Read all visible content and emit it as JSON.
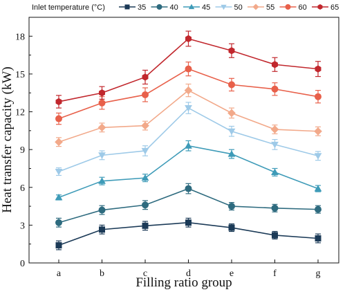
{
  "chart_data": {
    "type": "line",
    "xlabel": "Filling ratio group",
    "ylabel": "Heat transfer capacity (kW)",
    "categories": [
      "a",
      "b",
      "c",
      "d",
      "e",
      "f",
      "g"
    ],
    "ylim": [
      0,
      19.5
    ],
    "yticks": [
      "0",
      "3",
      "6",
      "9",
      "12",
      "15",
      "18"
    ],
    "grid": false,
    "legend_title": "Inlet temperature (°C)",
    "legend_position": "top",
    "series": [
      {
        "name": "35",
        "color": "#1b3a57",
        "marker": "square",
        "values": [
          1.4,
          2.65,
          2.95,
          3.2,
          2.8,
          2.2,
          1.95
        ],
        "errors": [
          0.35,
          0.35,
          0.35,
          0.35,
          0.3,
          0.3,
          0.35
        ]
      },
      {
        "name": "40",
        "color": "#2e6b7f",
        "marker": "circle",
        "values": [
          3.2,
          4.2,
          4.6,
          5.9,
          4.5,
          4.35,
          4.25
        ],
        "errors": [
          0.35,
          0.35,
          0.35,
          0.4,
          0.3,
          0.3,
          0.3
        ]
      },
      {
        "name": "45",
        "color": "#3e9bb8",
        "marker": "triangle-up",
        "values": [
          5.2,
          6.5,
          6.75,
          9.3,
          8.65,
          7.2,
          5.9
        ],
        "errors": [
          0.2,
          0.3,
          0.3,
          0.4,
          0.35,
          0.3,
          0.25
        ]
      },
      {
        "name": "50",
        "color": "#9ecae8",
        "marker": "triangle-down",
        "values": [
          7.25,
          8.55,
          8.9,
          12.3,
          10.45,
          9.4,
          8.5
        ],
        "errors": [
          0.3,
          0.35,
          0.4,
          0.45,
          0.4,
          0.4,
          0.35
        ]
      },
      {
        "name": "55",
        "color": "#f2a98a",
        "marker": "diamond",
        "values": [
          9.6,
          10.75,
          10.9,
          13.7,
          11.9,
          10.6,
          10.45
        ],
        "errors": [
          0.35,
          0.35,
          0.35,
          0.5,
          0.4,
          0.35,
          0.35
        ]
      },
      {
        "name": "60",
        "color": "#e8604a",
        "marker": "circle",
        "values": [
          11.45,
          12.7,
          13.35,
          15.4,
          14.15,
          13.8,
          13.2
        ],
        "errors": [
          0.45,
          0.5,
          0.55,
          0.55,
          0.5,
          0.5,
          0.5
        ]
      },
      {
        "name": "65",
        "color": "#c1272d",
        "marker": "hexagon",
        "values": [
          12.8,
          13.5,
          14.75,
          17.8,
          16.85,
          15.75,
          15.4
        ],
        "errors": [
          0.5,
          0.5,
          0.55,
          0.6,
          0.55,
          0.55,
          0.6
        ]
      }
    ]
  }
}
